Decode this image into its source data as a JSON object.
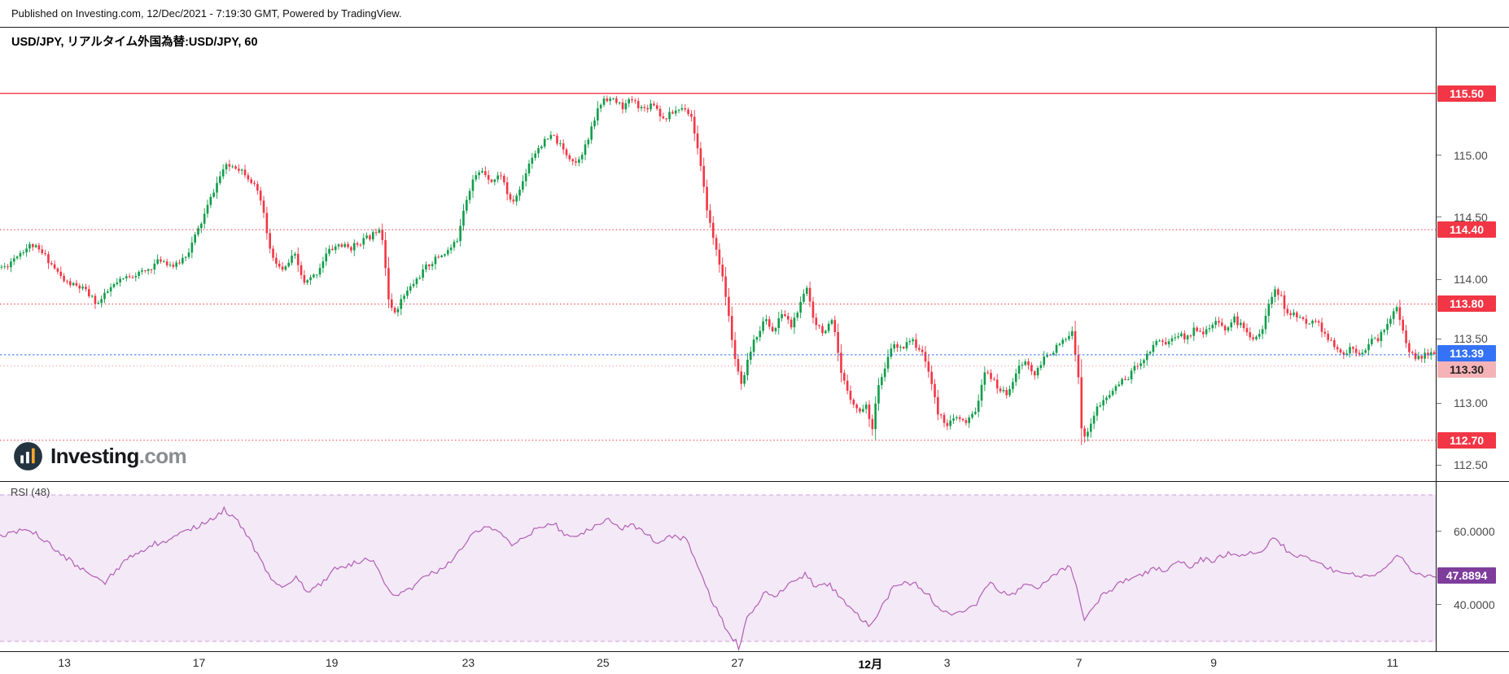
{
  "header": {
    "published": "Published on Investing.com, 12/Dec/2021 - 7:19:30 GMT, Powered by TradingView."
  },
  "chart": {
    "title": "USD/JPY, リアルタイム外国為替:USD/JPY, 60"
  },
  "logo": {
    "name": "Investing",
    "tld": ".com"
  },
  "rsi": {
    "label": "RSI (48)",
    "value_label": "47.8894"
  },
  "colors": {
    "candle_up": "#0f9d49",
    "candle_down": "#f23645",
    "level_red": "#f23645",
    "level_blue": "#3472f7",
    "pale_pink_line": "#f2a6ab",
    "badge_pink_bg": "#f5b3b8",
    "rsi_line": "#b05fb4",
    "rsi_band_fill": "#f4e9f7",
    "rsi_band_border": "#cf9ddb",
    "rsi_badge_bg": "#7e3d9b",
    "axis_text": "#4a4a4a",
    "time_text": "#2a2a2a"
  },
  "chart_data": {
    "type": "candlestick",
    "title": "USD/JPY, リアルタイム外国為替:USD/JPY, 60",
    "symbol": "USD/JPY",
    "interval": "60",
    "seed": 11,
    "candles": 460,
    "y_range": [
      112.364,
      115.886
    ],
    "plain_ticks": [
      {
        "label": "115.00",
        "price": 115.0
      },
      {
        "label": "114.50",
        "price": 114.5
      },
      {
        "label": "114.00",
        "price": 114.0
      },
      {
        "label": "113.50",
        "price": 113.5,
        "dy": -3
      },
      {
        "label": "113.00",
        "price": 113.0
      },
      {
        "label": "112.50",
        "price": 112.5
      }
    ],
    "levels": [
      {
        "price": 115.5,
        "label": "115.50",
        "line": "solid",
        "line_color": "#f23645",
        "badge_bg": "#f23645",
        "badge_fg": "#ffffff",
        "above_candles": false
      },
      {
        "price": 114.4,
        "label": "114.40",
        "line": "dotted",
        "line_color": "#f23645",
        "badge_bg": "#f23645",
        "badge_fg": "#ffffff",
        "above_candles": false
      },
      {
        "price": 113.8,
        "label": "113.80",
        "line": "dotted",
        "line_color": "#f23645",
        "badge_bg": "#f23645",
        "badge_fg": "#ffffff",
        "above_candles": false
      },
      {
        "price": 113.39,
        "label": "113.39",
        "line": "dotted",
        "line_color": "#3472f7",
        "badge_bg": "#3472f7",
        "badge_fg": "#ffffff",
        "above_candles": true,
        "dy": -2
      },
      {
        "price": 113.3,
        "label": "113.30",
        "line": "dotted",
        "line_color": "#f2a6ab",
        "badge_bg": "#f5b3b8",
        "badge_fg": "#222222",
        "above_candles": false,
        "dy": 4
      },
      {
        "price": 112.7,
        "label": "112.70",
        "line": "dotted",
        "line_color": "#f23645",
        "badge_bg": "#f23645",
        "badge_fg": "#ffffff",
        "above_candles": false
      }
    ],
    "price_path": [
      [
        0.004,
        114.1
      ],
      [
        0.012,
        114.2
      ],
      [
        0.022,
        114.28
      ],
      [
        0.032,
        114.18
      ],
      [
        0.045,
        113.98
      ],
      [
        0.058,
        113.92
      ],
      [
        0.068,
        113.8
      ],
      [
        0.078,
        113.94
      ],
      [
        0.09,
        114.03
      ],
      [
        0.101,
        114.06
      ],
      [
        0.112,
        114.16
      ],
      [
        0.122,
        114.1
      ],
      [
        0.131,
        114.22
      ],
      [
        0.14,
        114.45
      ],
      [
        0.149,
        114.72
      ],
      [
        0.156,
        114.9
      ],
      [
        0.163,
        114.92
      ],
      [
        0.17,
        114.87
      ],
      [
        0.176,
        114.78
      ],
      [
        0.182,
        114.62
      ],
      [
        0.189,
        114.18
      ],
      [
        0.197,
        114.06
      ],
      [
        0.205,
        114.2
      ],
      [
        0.212,
        113.96
      ],
      [
        0.22,
        114.04
      ],
      [
        0.228,
        114.22
      ],
      [
        0.236,
        114.28
      ],
      [
        0.244,
        114.25
      ],
      [
        0.252,
        114.31
      ],
      [
        0.259,
        114.35
      ],
      [
        0.264,
        114.43
      ],
      [
        0.267,
        114.3
      ],
      [
        0.271,
        113.8
      ],
      [
        0.274,
        113.72
      ],
      [
        0.281,
        113.86
      ],
      [
        0.289,
        113.98
      ],
      [
        0.297,
        114.1
      ],
      [
        0.305,
        114.18
      ],
      [
        0.312,
        114.23
      ],
      [
        0.318,
        114.3
      ],
      [
        0.323,
        114.58
      ],
      [
        0.329,
        114.8
      ],
      [
        0.336,
        114.88
      ],
      [
        0.343,
        114.79
      ],
      [
        0.349,
        114.85
      ],
      [
        0.356,
        114.6
      ],
      [
        0.362,
        114.72
      ],
      [
        0.369,
        114.96
      ],
      [
        0.376,
        115.08
      ],
      [
        0.385,
        115.16
      ],
      [
        0.393,
        115.03
      ],
      [
        0.401,
        114.94
      ],
      [
        0.409,
        115.1
      ],
      [
        0.416,
        115.36
      ],
      [
        0.421,
        115.47
      ],
      [
        0.428,
        115.44
      ],
      [
        0.434,
        115.39
      ],
      [
        0.44,
        115.45
      ],
      [
        0.448,
        115.37
      ],
      [
        0.455,
        115.43
      ],
      [
        0.462,
        115.29
      ],
      [
        0.47,
        115.36
      ],
      [
        0.477,
        115.39
      ],
      [
        0.482,
        115.3
      ],
      [
        0.487,
        114.98
      ],
      [
        0.491,
        114.66
      ],
      [
        0.496,
        114.36
      ],
      [
        0.5,
        114.2
      ],
      [
        0.505,
        113.9
      ],
      [
        0.509,
        113.58
      ],
      [
        0.513,
        113.28
      ],
      [
        0.517,
        113.12
      ],
      [
        0.522,
        113.4
      ],
      [
        0.527,
        113.55
      ],
      [
        0.533,
        113.68
      ],
      [
        0.539,
        113.57
      ],
      [
        0.545,
        113.74
      ],
      [
        0.551,
        113.62
      ],
      [
        0.557,
        113.78
      ],
      [
        0.562,
        113.93
      ],
      [
        0.567,
        113.67
      ],
      [
        0.574,
        113.57
      ],
      [
        0.58,
        113.66
      ],
      [
        0.586,
        113.22
      ],
      [
        0.592,
        113.06
      ],
      [
        0.598,
        112.92
      ],
      [
        0.603,
        113.0
      ],
      [
        0.607,
        112.76
      ],
      [
        0.611,
        113.12
      ],
      [
        0.616,
        113.25
      ],
      [
        0.621,
        113.47
      ],
      [
        0.627,
        113.43
      ],
      [
        0.633,
        113.52
      ],
      [
        0.64,
        113.45
      ],
      [
        0.647,
        113.27
      ],
      [
        0.653,
        112.92
      ],
      [
        0.66,
        112.83
      ],
      [
        0.667,
        112.88
      ],
      [
        0.673,
        112.83
      ],
      [
        0.68,
        112.96
      ],
      [
        0.687,
        113.28
      ],
      [
        0.694,
        113.13
      ],
      [
        0.701,
        113.07
      ],
      [
        0.708,
        113.26
      ],
      [
        0.714,
        113.34
      ],
      [
        0.721,
        113.22
      ],
      [
        0.728,
        113.38
      ],
      [
        0.734,
        113.43
      ],
      [
        0.741,
        113.5
      ],
      [
        0.747,
        113.56
      ],
      [
        0.751,
        113.25
      ],
      [
        0.754,
        112.66
      ],
      [
        0.758,
        112.8
      ],
      [
        0.764,
        112.96
      ],
      [
        0.771,
        113.04
      ],
      [
        0.778,
        113.15
      ],
      [
        0.785,
        113.2
      ],
      [
        0.792,
        113.31
      ],
      [
        0.799,
        113.39
      ],
      [
        0.806,
        113.52
      ],
      [
        0.813,
        113.48
      ],
      [
        0.82,
        113.56
      ],
      [
        0.826,
        113.52
      ],
      [
        0.833,
        113.61
      ],
      [
        0.84,
        113.57
      ],
      [
        0.846,
        113.65
      ],
      [
        0.853,
        113.6
      ],
      [
        0.86,
        113.68
      ],
      [
        0.867,
        113.59
      ],
      [
        0.873,
        113.53
      ],
      [
        0.879,
        113.58
      ],
      [
        0.884,
        113.8
      ],
      [
        0.888,
        113.94
      ],
      [
        0.892,
        113.86
      ],
      [
        0.897,
        113.7
      ],
      [
        0.903,
        113.72
      ],
      [
        0.909,
        113.64
      ],
      [
        0.915,
        113.69
      ],
      [
        0.922,
        113.57
      ],
      [
        0.928,
        113.47
      ],
      [
        0.935,
        113.38
      ],
      [
        0.941,
        113.45
      ],
      [
        0.948,
        113.41
      ],
      [
        0.954,
        113.49
      ],
      [
        0.961,
        113.53
      ],
      [
        0.968,
        113.69
      ],
      [
        0.973,
        113.76
      ],
      [
        0.978,
        113.54
      ],
      [
        0.983,
        113.39
      ],
      [
        0.989,
        113.35
      ],
      [
        0.995,
        113.41
      ],
      [
        1.0,
        113.39
      ]
    ],
    "time_labels": [
      {
        "label": "13",
        "f": 0.0449,
        "bold": false
      },
      {
        "label": "17",
        "f": 0.1386,
        "bold": false
      },
      {
        "label": "19",
        "f": 0.2311,
        "bold": false
      },
      {
        "label": "23",
        "f": 0.3262,
        "bold": false
      },
      {
        "label": "25",
        "f": 0.42,
        "bold": false
      },
      {
        "label": "27",
        "f": 0.5137,
        "bold": false
      },
      {
        "label": "12月",
        "f": 0.6062,
        "bold": true
      },
      {
        "label": "3",
        "f": 0.6597,
        "bold": false
      },
      {
        "label": "7",
        "f": 0.7515,
        "bold": false
      },
      {
        "label": "9",
        "f": 0.8453,
        "bold": false
      },
      {
        "label": "11",
        "f": 0.9699,
        "bold": false
      }
    ],
    "rsi_data": {
      "type": "line",
      "indicator": "RSI (48)",
      "current_value": 47.8894,
      "band": [
        30,
        70
      ],
      "axis_range": [
        27.3,
        73.55
      ],
      "ticks": [
        {
          "label": "60.0000",
          "value": 60
        },
        {
          "label": "40.0000",
          "value": 40
        }
      ],
      "path": [
        [
          0.004,
          59
        ],
        [
          0.02,
          61
        ],
        [
          0.04,
          54.5
        ],
        [
          0.054,
          50.5
        ],
        [
          0.067,
          47
        ],
        [
          0.072,
          45.5
        ],
        [
          0.082,
          50
        ],
        [
          0.094,
          54
        ],
        [
          0.107,
          56.5
        ],
        [
          0.12,
          58
        ],
        [
          0.133,
          60.5
        ],
        [
          0.146,
          63
        ],
        [
          0.156,
          66
        ],
        [
          0.166,
          62.5
        ],
        [
          0.177,
          55.5
        ],
        [
          0.188,
          47.5
        ],
        [
          0.198,
          44.5
        ],
        [
          0.207,
          47.5
        ],
        [
          0.214,
          43.5
        ],
        [
          0.224,
          46
        ],
        [
          0.234,
          50
        ],
        [
          0.248,
          51.5
        ],
        [
          0.26,
          52.5
        ],
        [
          0.268,
          45
        ],
        [
          0.276,
          42.5
        ],
        [
          0.286,
          44.5
        ],
        [
          0.296,
          47.5
        ],
        [
          0.306,
          49.5
        ],
        [
          0.316,
          52.5
        ],
        [
          0.326,
          58
        ],
        [
          0.333,
          60.5
        ],
        [
          0.34,
          61.5
        ],
        [
          0.347,
          60
        ],
        [
          0.356,
          56.5
        ],
        [
          0.366,
          59
        ],
        [
          0.376,
          61
        ],
        [
          0.386,
          62
        ],
        [
          0.396,
          58.5
        ],
        [
          0.406,
          59.5
        ],
        [
          0.416,
          62
        ],
        [
          0.423,
          63.5
        ],
        [
          0.432,
          61
        ],
        [
          0.441,
          61.5
        ],
        [
          0.45,
          59
        ],
        [
          0.459,
          57
        ],
        [
          0.468,
          58.5
        ],
        [
          0.477,
          58
        ],
        [
          0.483,
          54
        ],
        [
          0.489,
          47.5
        ],
        [
          0.496,
          41
        ],
        [
          0.503,
          35.5
        ],
        [
          0.509,
          31.5
        ],
        [
          0.5125,
          30
        ],
        [
          0.5145,
          27.8
        ],
        [
          0.52,
          37
        ],
        [
          0.527,
          39.5
        ],
        [
          0.533,
          43.5
        ],
        [
          0.54,
          42
        ],
        [
          0.547,
          44.5
        ],
        [
          0.554,
          46.5
        ],
        [
          0.561,
          48.5
        ],
        [
          0.569,
          44.5
        ],
        [
          0.577,
          46
        ],
        [
          0.586,
          41.5
        ],
        [
          0.596,
          37.5
        ],
        [
          0.606,
          34.5
        ],
        [
          0.614,
          39.5
        ],
        [
          0.622,
          44.5
        ],
        [
          0.63,
          46
        ],
        [
          0.638,
          45.5
        ],
        [
          0.647,
          42.5
        ],
        [
          0.655,
          38.5
        ],
        [
          0.664,
          37
        ],
        [
          0.672,
          38.5
        ],
        [
          0.681,
          40.5
        ],
        [
          0.689,
          46
        ],
        [
          0.697,
          43.5
        ],
        [
          0.705,
          42.5
        ],
        [
          0.714,
          46
        ],
        [
          0.722,
          44.5
        ],
        [
          0.731,
          47.5
        ],
        [
          0.739,
          49.5
        ],
        [
          0.746,
          50.5
        ],
        [
          0.7515,
          42
        ],
        [
          0.7555,
          36
        ],
        [
          0.763,
          40.5
        ],
        [
          0.771,
          43.5
        ],
        [
          0.779,
          45.5
        ],
        [
          0.787,
          47.5
        ],
        [
          0.796,
          48
        ],
        [
          0.804,
          50
        ],
        [
          0.812,
          49.5
        ],
        [
          0.821,
          51.5
        ],
        [
          0.829,
          50.5
        ],
        [
          0.837,
          52.5
        ],
        [
          0.846,
          52
        ],
        [
          0.854,
          54
        ],
        [
          0.862,
          53.5
        ],
        [
          0.871,
          54.5
        ],
        [
          0.879,
          54
        ],
        [
          0.886,
          58
        ],
        [
          0.893,
          56.5
        ],
        [
          0.901,
          52.5
        ],
        [
          0.91,
          53.5
        ],
        [
          0.918,
          51.5
        ],
        [
          0.927,
          50
        ],
        [
          0.935,
          48
        ],
        [
          0.943,
          48.5
        ],
        [
          0.951,
          47.5
        ],
        [
          0.96,
          48.5
        ],
        [
          0.968,
          51.5
        ],
        [
          0.976,
          53.5
        ],
        [
          0.984,
          48.5
        ],
        [
          0.993,
          47.3
        ],
        [
          1.0,
          47.89
        ]
      ]
    }
  }
}
